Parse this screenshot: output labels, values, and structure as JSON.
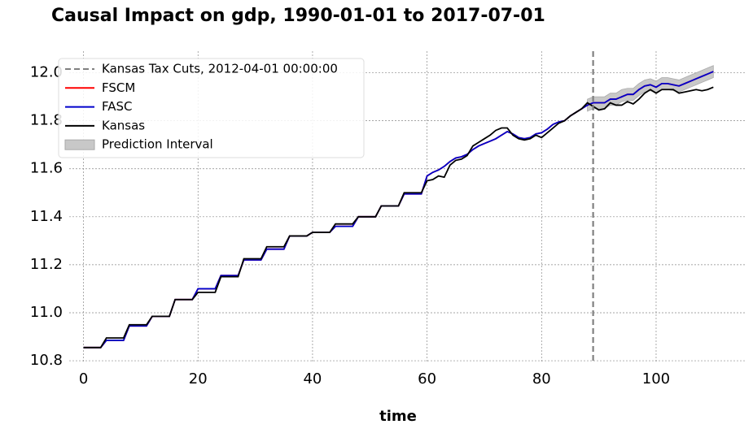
{
  "chart_data": {
    "type": "line",
    "title": "Causal Impact on gdp, 1990-01-01 to 2017-07-01",
    "xlabel": "time",
    "x": [
      0,
      1,
      2,
      3,
      4,
      5,
      6,
      7,
      8,
      9,
      10,
      11,
      12,
      13,
      14,
      15,
      16,
      17,
      18,
      19,
      20,
      21,
      22,
      23,
      24,
      25,
      26,
      27,
      28,
      29,
      30,
      31,
      32,
      33,
      34,
      35,
      36,
      37,
      38,
      39,
      40,
      41,
      42,
      43,
      44,
      45,
      46,
      47,
      48,
      49,
      50,
      51,
      52,
      53,
      54,
      55,
      56,
      57,
      58,
      59,
      60,
      61,
      62,
      63,
      64,
      65,
      66,
      67,
      68,
      69,
      70,
      71,
      72,
      73,
      74,
      75,
      76,
      77,
      78,
      79,
      80,
      81,
      82,
      83,
      84,
      85,
      86,
      87,
      88,
      89,
      90,
      91,
      92,
      93,
      94,
      95,
      96,
      97,
      98,
      99,
      100,
      101,
      102,
      103,
      104,
      105,
      106,
      107,
      108,
      109,
      110
    ],
    "series": [
      {
        "name": "FSCM",
        "color": "#ff0000",
        "values": [
          10.855,
          10.855,
          10.855,
          10.855,
          10.885,
          10.885,
          10.885,
          10.885,
          10.945,
          10.945,
          10.945,
          10.945,
          10.985,
          10.985,
          10.985,
          10.985,
          11.055,
          11.055,
          11.055,
          11.055,
          11.1,
          11.1,
          11.1,
          11.1,
          11.155,
          11.155,
          11.155,
          11.155,
          11.22,
          11.22,
          11.22,
          11.22,
          11.265,
          11.265,
          11.265,
          11.265,
          11.32,
          11.32,
          11.32,
          11.32,
          11.335,
          11.335,
          11.335,
          11.335,
          11.36,
          11.36,
          11.36,
          11.36,
          11.4,
          11.4,
          11.4,
          11.4,
          11.445,
          11.445,
          11.445,
          11.445,
          11.495,
          11.495,
          11.495,
          11.495,
          11.57,
          11.585,
          11.595,
          11.61,
          11.63,
          11.645,
          11.65,
          11.66,
          11.68,
          11.695,
          11.705,
          11.715,
          11.725,
          11.74,
          11.755,
          11.745,
          11.73,
          11.725,
          11.73,
          11.745,
          11.75,
          11.765,
          11.785,
          11.795,
          11.8,
          11.82,
          11.835,
          11.85,
          11.865,
          11.875,
          11.875,
          11.875,
          11.89,
          11.89,
          11.9,
          11.91,
          11.91,
          11.93,
          11.945,
          11.95,
          11.94,
          11.955,
          11.955,
          11.95,
          11.945,
          11.955,
          11.965,
          11.975,
          11.985,
          11.995,
          12.005
        ]
      },
      {
        "name": "FASC",
        "color": "#0000cc",
        "values": [
          10.855,
          10.855,
          10.855,
          10.855,
          10.885,
          10.885,
          10.885,
          10.885,
          10.945,
          10.945,
          10.945,
          10.945,
          10.985,
          10.985,
          10.985,
          10.985,
          11.055,
          11.055,
          11.055,
          11.055,
          11.1,
          11.1,
          11.1,
          11.1,
          11.155,
          11.155,
          11.155,
          11.155,
          11.22,
          11.22,
          11.22,
          11.22,
          11.265,
          11.265,
          11.265,
          11.265,
          11.32,
          11.32,
          11.32,
          11.32,
          11.335,
          11.335,
          11.335,
          11.335,
          11.36,
          11.36,
          11.36,
          11.36,
          11.4,
          11.4,
          11.4,
          11.4,
          11.445,
          11.445,
          11.445,
          11.445,
          11.495,
          11.495,
          11.495,
          11.495,
          11.57,
          11.585,
          11.595,
          11.61,
          11.63,
          11.645,
          11.65,
          11.66,
          11.68,
          11.695,
          11.705,
          11.715,
          11.725,
          11.74,
          11.755,
          11.745,
          11.73,
          11.725,
          11.73,
          11.745,
          11.75,
          11.765,
          11.785,
          11.795,
          11.8,
          11.82,
          11.835,
          11.85,
          11.865,
          11.875,
          11.875,
          11.875,
          11.89,
          11.89,
          11.9,
          11.91,
          11.91,
          11.93,
          11.945,
          11.95,
          11.94,
          11.955,
          11.955,
          11.95,
          11.945,
          11.955,
          11.965,
          11.975,
          11.985,
          11.995,
          12.005
        ]
      },
      {
        "name": "Kansas",
        "color": "#000000",
        "values": [
          10.855,
          10.855,
          10.855,
          10.855,
          10.895,
          10.895,
          10.895,
          10.895,
          10.95,
          10.95,
          10.95,
          10.95,
          10.985,
          10.985,
          10.985,
          10.985,
          11.055,
          11.055,
          11.055,
          11.055,
          11.085,
          11.085,
          11.085,
          11.085,
          11.15,
          11.15,
          11.15,
          11.15,
          11.225,
          11.225,
          11.225,
          11.225,
          11.275,
          11.275,
          11.275,
          11.275,
          11.32,
          11.32,
          11.32,
          11.32,
          11.335,
          11.335,
          11.335,
          11.335,
          11.37,
          11.37,
          11.37,
          11.37,
          11.4,
          11.4,
          11.4,
          11.4,
          11.445,
          11.445,
          11.445,
          11.445,
          11.5,
          11.5,
          11.5,
          11.5,
          11.55,
          11.555,
          11.57,
          11.565,
          11.615,
          11.635,
          11.64,
          11.655,
          11.695,
          11.71,
          11.725,
          11.74,
          11.76,
          11.77,
          11.77,
          11.74,
          11.725,
          11.72,
          11.725,
          11.74,
          11.73,
          11.75,
          11.77,
          11.79,
          11.8,
          11.82,
          11.835,
          11.85,
          11.875,
          11.86,
          11.845,
          11.85,
          11.875,
          11.865,
          11.865,
          11.88,
          11.87,
          11.89,
          11.915,
          11.93,
          11.915,
          11.93,
          11.93,
          11.93,
          11.915,
          11.92,
          11.925,
          11.93,
          11.925,
          11.93,
          11.94
        ]
      }
    ],
    "interval": {
      "name": "Prediction Interval",
      "color": "#c8c8c8",
      "x": [
        88,
        89,
        90,
        91,
        92,
        93,
        94,
        95,
        96,
        97,
        98,
        99,
        100,
        101,
        102,
        103,
        104,
        105,
        106,
        107,
        108,
        109,
        110
      ],
      "lower": [
        11.84,
        11.85,
        11.85,
        11.85,
        11.865,
        11.865,
        11.88,
        11.885,
        11.885,
        11.905,
        11.92,
        11.925,
        11.915,
        11.93,
        11.93,
        11.925,
        11.92,
        11.93,
        11.94,
        11.95,
        11.96,
        11.97,
        11.98
      ],
      "upper": [
        11.89,
        11.9,
        11.9,
        11.9,
        11.915,
        11.915,
        11.93,
        11.935,
        11.935,
        11.955,
        11.97,
        11.975,
        11.965,
        11.98,
        11.98,
        11.975,
        11.97,
        11.98,
        11.99,
        12.0,
        12.01,
        12.02,
        12.03
      ]
    },
    "vline": {
      "name": "Kansas Tax Cuts, 2012-04-01 00:00:00",
      "x": 89,
      "color": "#808080"
    },
    "xlim": [
      -2.5,
      115.5
    ],
    "ylim": [
      10.79,
      12.09
    ],
    "xticks": [
      0,
      20,
      40,
      60,
      80,
      100
    ],
    "yticks": [
      10.8,
      {
        "value": 11,
        "label": "11.0"
      },
      11.2,
      11.4,
      11.6,
      11.8,
      {
        "value": 12,
        "label": "12.0"
      }
    ],
    "grid": true,
    "legend": "upper left"
  }
}
